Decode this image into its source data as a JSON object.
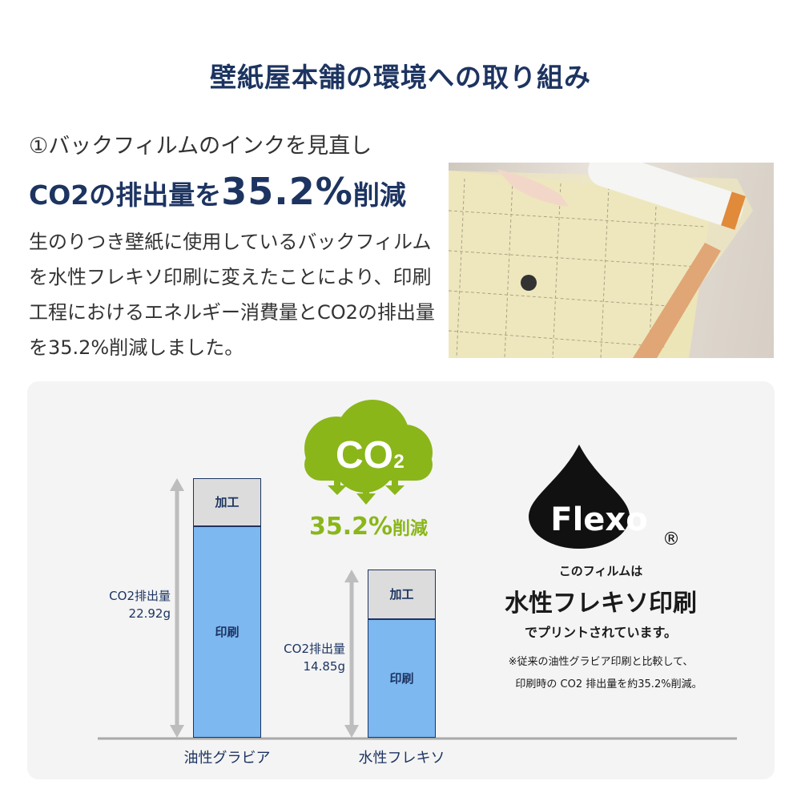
{
  "title": "壁紙屋本舗の環境への取り組み",
  "section": {
    "subtitle": "①バックフィルムのインクを見直し",
    "headline_prefix": "CO2の排出量を",
    "headline_value": "35.2%",
    "headline_suffix": "削減",
    "body": "生のりつき壁紙に使用しているバックフィルムを水性フレキソ印刷に変えたことにより、印刷工程におけるエネルギー消費量とCO2の排出量を35.2%削減しました。"
  },
  "badge": {
    "cloud_text": "CO",
    "cloud_sub": "2",
    "reduction_value": "35.2%",
    "reduction_suffix": "削減",
    "color": "#8ab61a"
  },
  "flexo": {
    "logo": "Flexo",
    "registered": "®",
    "line1": "このフィルムは",
    "line2": "水性フレキソ印刷",
    "line3": "でプリントされています。",
    "note1": "※従来の油性グラビア印刷と比較して、",
    "note2": "印刷時の CO2 排出量を約35.2%削減。"
  },
  "chart_data": {
    "type": "bar",
    "stacked": true,
    "categories": [
      "油性グラビア",
      "水性フレキソ"
    ],
    "totals": [
      22.92,
      14.85
    ],
    "total_label": "CO2排出量",
    "total_units": "g",
    "total_texts": [
      "22.92g",
      "14.85g"
    ],
    "series": [
      {
        "name": "印刷",
        "values": [
          18.7,
          10.5
        ],
        "color": "#7db8f0"
      },
      {
        "name": "加工",
        "values": [
          4.22,
          4.35
        ],
        "color": "#dcdcdc"
      }
    ],
    "ylim": [
      0,
      22.92
    ],
    "grid": false
  }
}
